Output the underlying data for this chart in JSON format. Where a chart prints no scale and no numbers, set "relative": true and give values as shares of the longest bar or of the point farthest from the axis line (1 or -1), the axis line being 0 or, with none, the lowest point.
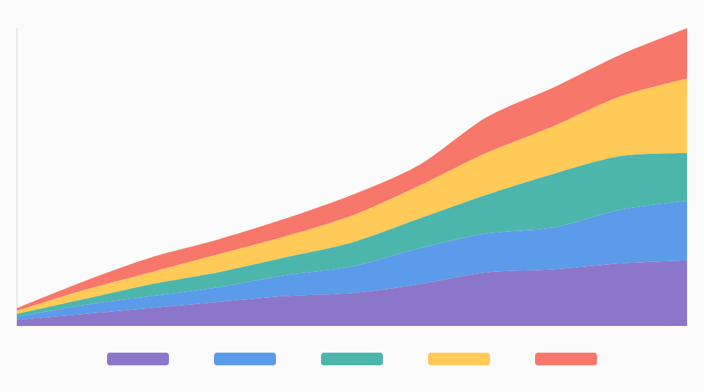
{
  "chart_data": {
    "type": "area",
    "stacked": true,
    "relative": true,
    "categories": [
      null,
      null,
      null,
      null,
      null,
      null,
      null,
      null,
      null,
      null,
      null
    ],
    "series": [
      {
        "color": "#8b76c9",
        "values": [
          0.02,
          0.04,
          0.06,
          0.08,
          0.1,
          0.11,
          0.14,
          0.18,
          0.19,
          0.21,
          0.22
        ]
      },
      {
        "color": "#5b9bea",
        "values": [
          0.01,
          0.03,
          0.04,
          0.05,
          0.07,
          0.09,
          0.12,
          0.13,
          0.14,
          0.18,
          0.2
        ]
      },
      {
        "color": "#4db6ac",
        "values": [
          0.01,
          0.02,
          0.04,
          0.05,
          0.06,
          0.08,
          0.1,
          0.13,
          0.18,
          0.18,
          0.16
        ]
      },
      {
        "color": "#ffca57",
        "values": [
          0.01,
          0.03,
          0.04,
          0.06,
          0.07,
          0.09,
          0.11,
          0.14,
          0.16,
          0.2,
          0.25
        ]
      },
      {
        "color": "#f7776b",
        "values": [
          0.01,
          0.03,
          0.05,
          0.05,
          0.06,
          0.07,
          0.07,
          0.12,
          0.13,
          0.14,
          0.17
        ]
      }
    ]
  }
}
